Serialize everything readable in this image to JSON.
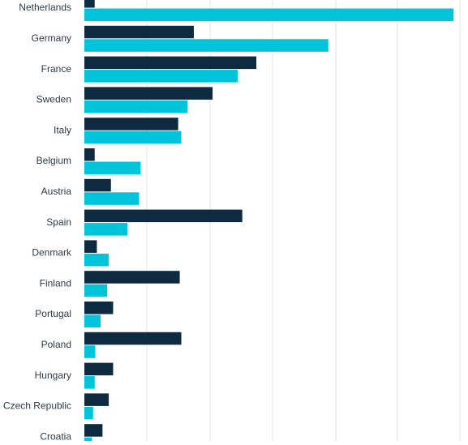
{
  "chart_data": {
    "type": "bar",
    "orientation": "horizontal",
    "title": "",
    "xlabel": "",
    "ylabel": "",
    "xlim": [
      0,
      118
    ],
    "grid": true,
    "legend": "none",
    "categories": [
      "Netherlands",
      "Germany",
      "France",
      "Sweden",
      "Italy",
      "Belgium",
      "Austria",
      "Spain",
      "Denmark",
      "Finland",
      "Portugal",
      "Poland",
      "Hungary",
      "Czech Republic",
      "Croatia"
    ],
    "series": [
      {
        "color": "#0d2a40",
        "values": [
          3.3,
          35,
          55,
          41,
          30,
          3.3,
          8.5,
          50.5,
          4,
          30.5,
          9.2,
          31,
          9.2,
          7.8,
          5.8
        ]
      },
      {
        "color": "#00c4d9",
        "values": [
          118,
          78,
          49,
          33,
          31,
          18,
          17.5,
          13.8,
          7.8,
          7.3,
          5.2,
          3.5,
          3.3,
          2.8,
          2.4
        ]
      }
    ]
  }
}
